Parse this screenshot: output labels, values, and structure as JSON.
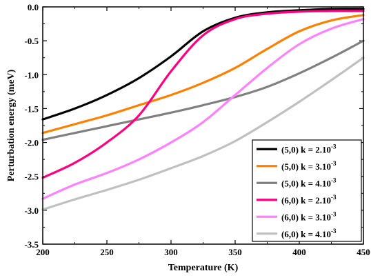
{
  "chart_data": {
    "type": "line",
    "xlabel": "Temperature (K)",
    "ylabel": "Perturbation energy (meV)",
    "xlim": [
      200,
      450
    ],
    "ylim": [
      -3.5,
      0.0
    ],
    "xticks": [
      200,
      250,
      300,
      350,
      400,
      450
    ],
    "yticks": [
      0.0,
      -0.5,
      -1.0,
      -1.5,
      -2.0,
      -2.5,
      -3.0,
      -3.5
    ],
    "xtick_labels": [
      "200",
      "250",
      "300",
      "350",
      "400",
      "450"
    ],
    "ytick_labels": [
      "0.0",
      "-0.5",
      "-1.0",
      "-1.5",
      "-2.0",
      "-2.5",
      "-3.0",
      "-3.5"
    ],
    "grid": false,
    "legend_position": "bottom-right",
    "x": [
      200,
      225,
      250,
      275,
      300,
      325,
      350,
      375,
      400,
      425,
      450
    ],
    "series": [
      {
        "name_base": "(5,0) k = 2.10",
        "name_exp": "-3",
        "color": "#000000",
        "values": [
          -1.66,
          -1.5,
          -1.3,
          -1.05,
          -0.73,
          -0.36,
          -0.16,
          -0.08,
          -0.05,
          -0.03,
          -0.03
        ]
      },
      {
        "name_base": "(5,0) k = 3.10",
        "name_exp": "-3",
        "color": "#ff8000",
        "values": [
          -1.86,
          -1.73,
          -1.6,
          -1.45,
          -1.3,
          -1.12,
          -0.9,
          -0.62,
          -0.36,
          -0.2,
          -0.12
        ]
      },
      {
        "name_base": "(5,0) k = 4.10",
        "name_exp": "-3",
        "color": "#808080",
        "values": [
          -1.96,
          -1.86,
          -1.76,
          -1.66,
          -1.56,
          -1.45,
          -1.33,
          -1.18,
          -0.98,
          -0.75,
          -0.5
        ]
      },
      {
        "name_base": "(6,0) k = 2.10",
        "name_exp": "-3",
        "color": "#ff0080",
        "values": [
          -2.52,
          -2.3,
          -2.0,
          -1.6,
          -0.95,
          -0.42,
          -0.18,
          -0.1,
          -0.07,
          -0.06,
          -0.06
        ]
      },
      {
        "name_base": "(6,0) k = 3.10",
        "name_exp": "-3",
        "color": "#ff80ff",
        "values": [
          -2.83,
          -2.62,
          -2.45,
          -2.25,
          -2.0,
          -1.7,
          -1.3,
          -0.9,
          -0.55,
          -0.32,
          -0.18
        ]
      },
      {
        "name_base": "(6,0) k = 4.10",
        "name_exp": "-3",
        "color": "#c0c0c0",
        "values": [
          -2.99,
          -2.84,
          -2.7,
          -2.55,
          -2.38,
          -2.2,
          -1.98,
          -1.7,
          -1.4,
          -1.08,
          -0.75
        ]
      }
    ]
  }
}
